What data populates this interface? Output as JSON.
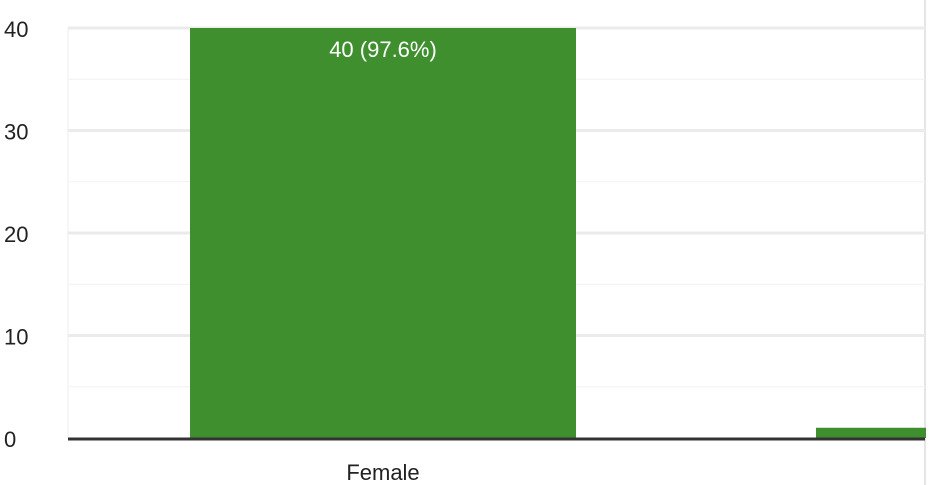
{
  "chart_data": {
    "type": "bar",
    "categories": [
      "Female",
      ""
    ],
    "values": [
      40,
      1
    ],
    "data_labels": [
      "40 (97.6%)",
      ""
    ],
    "yticks": [
      0,
      10,
      20,
      30,
      40
    ],
    "ylim": [
      0,
      40
    ],
    "grid": true,
    "bar_color": "#3f8f2f",
    "gridline_color": "#ebebeb",
    "axis_color": "#333333"
  }
}
